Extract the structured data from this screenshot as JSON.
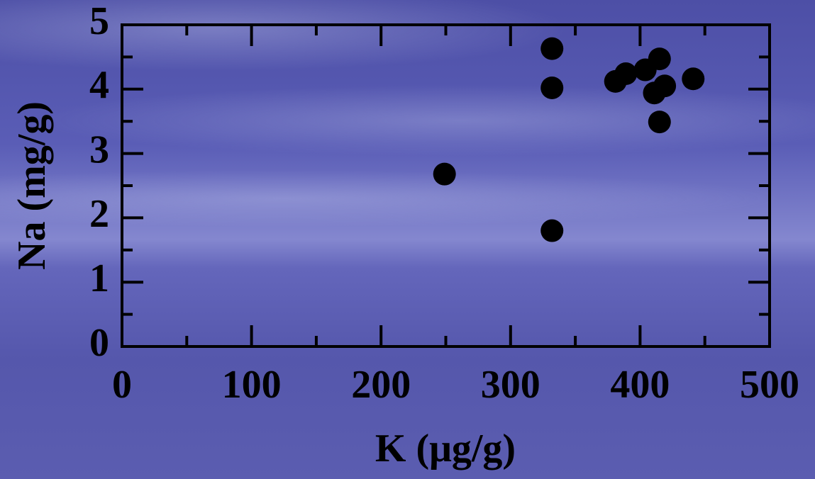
{
  "chart_data": {
    "type": "scatter",
    "x_label": "K (μg/g)",
    "y_label": "Na (mg/g)",
    "x": [
      249,
      332,
      332,
      332,
      381,
      389,
      404,
      415,
      411,
      419,
      415,
      441
    ],
    "series": [
      {
        "color": "#000000",
        "values": [
          2.68,
          4.63,
          4.02,
          1.8,
          4.12,
          4.24,
          4.3,
          4.47,
          3.94,
          4.05,
          3.49,
          4.16
        ]
      }
    ],
    "xlim": [
      0,
      500
    ],
    "ylim": [
      0,
      5
    ],
    "xticks": [
      0,
      100,
      200,
      300,
      400,
      500
    ],
    "yticks": [
      0,
      1,
      2,
      3,
      4,
      5
    ],
    "xminorticks": [
      50,
      150,
      250,
      350,
      450
    ],
    "yminorticks": [
      0.5,
      1.5,
      2.5,
      3.5,
      4.5
    ]
  }
}
